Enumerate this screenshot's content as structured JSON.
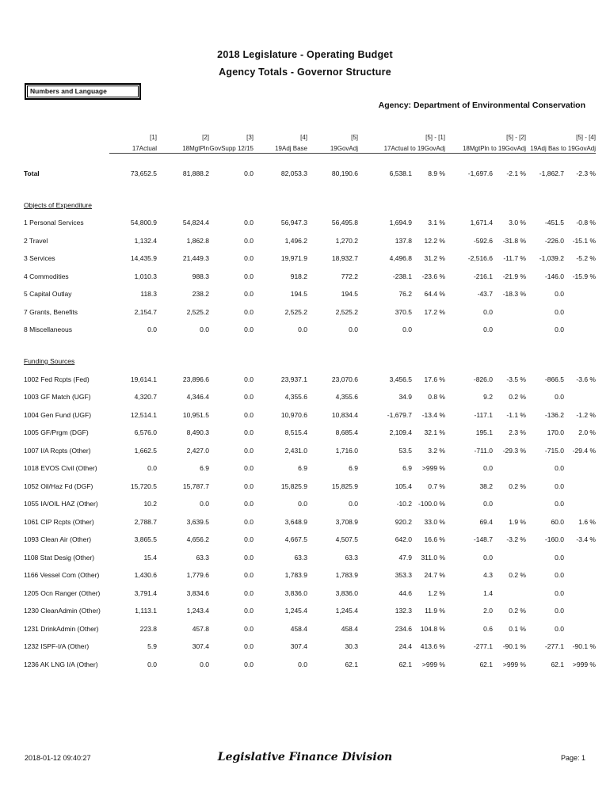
{
  "header": {
    "title_line1": "2018 Legislature - Operating Budget",
    "title_line2": "Agency Totals - Governor Structure",
    "params_box": "Numbers and Language",
    "agency_line": "Agency: Department of Environmental Conservation"
  },
  "table": {
    "columns": [
      {
        "bracket": "[1]",
        "label": "17Actual",
        "type": "single"
      },
      {
        "bracket": "[2]",
        "label": "18MgtPln",
        "type": "single"
      },
      {
        "bracket": "[3]",
        "label": "GovSupp 12/15",
        "type": "single"
      },
      {
        "bracket": "[4]",
        "label": "19Adj Base",
        "type": "single"
      },
      {
        "bracket": "[5]",
        "label": "19GovAdj",
        "type": "single"
      },
      {
        "bracket": "[5] - [1]",
        "label": "17Actual to 19GovAdj",
        "type": "group"
      },
      {
        "bracket": "[5] - [2]",
        "label": "18MgtPln to 19GovAdj",
        "type": "group"
      },
      {
        "bracket": "[5] - [4]",
        "label": "19Adj Bas to 19GovAdj",
        "type": "group"
      }
    ],
    "total_row": [
      "Total",
      "73,652.5",
      "81,888.2",
      "0.0",
      "82,053.3",
      "80,190.6",
      "6,538.1",
      "8.9 %",
      "-1,697.6",
      "-2.1 %",
      "-1,862.7",
      "-2.3 %"
    ],
    "sections": [
      {
        "title": "Objects of Expenditure",
        "rows": [
          [
            "1 Personal Services",
            "54,800.9",
            "54,824.4",
            "0.0",
            "56,947.3",
            "56,495.8",
            "1,694.9",
            "3.1 %",
            "1,671.4",
            "3.0 %",
            "-451.5",
            "-0.8 %"
          ],
          [
            "2 Travel",
            "1,132.4",
            "1,862.8",
            "0.0",
            "1,496.2",
            "1,270.2",
            "137.8",
            "12.2 %",
            "-592.6",
            "-31.8 %",
            "-226.0",
            "-15.1 %"
          ],
          [
            "3 Services",
            "14,435.9",
            "21,449.3",
            "0.0",
            "19,971.9",
            "18,932.7",
            "4,496.8",
            "31.2 %",
            "-2,516.6",
            "-11.7 %",
            "-1,039.2",
            "-5.2 %"
          ],
          [
            "4 Commodities",
            "1,010.3",
            "988.3",
            "0.0",
            "918.2",
            "772.2",
            "-238.1",
            "-23.6 %",
            "-216.1",
            "-21.9 %",
            "-146.0",
            "-15.9 %"
          ],
          [
            "5 Capital Outlay",
            "118.3",
            "238.2",
            "0.0",
            "194.5",
            "194.5",
            "76.2",
            "64.4 %",
            "-43.7",
            "-18.3 %",
            "0.0",
            ""
          ],
          [
            "7 Grants, Benefits",
            "2,154.7",
            "2,525.2",
            "0.0",
            "2,525.2",
            "2,525.2",
            "370.5",
            "17.2 %",
            "0.0",
            "",
            "0.0",
            ""
          ],
          [
            "8 Miscellaneous",
            "0.0",
            "0.0",
            "0.0",
            "0.0",
            "0.0",
            "0.0",
            "",
            "0.0",
            "",
            "0.0",
            ""
          ]
        ]
      },
      {
        "title": "Funding Sources",
        "rows": [
          [
            "1002 Fed Rcpts (Fed)",
            "19,614.1",
            "23,896.6",
            "0.0",
            "23,937.1",
            "23,070.6",
            "3,456.5",
            "17.6 %",
            "-826.0",
            "-3.5 %",
            "-866.5",
            "-3.6 %"
          ],
          [
            "1003 GF Match (UGF)",
            "4,320.7",
            "4,346.4",
            "0.0",
            "4,355.6",
            "4,355.6",
            "34.9",
            "0.8 %",
            "9.2",
            "0.2 %",
            "0.0",
            ""
          ],
          [
            "1004 Gen Fund (UGF)",
            "12,514.1",
            "10,951.5",
            "0.0",
            "10,970.6",
            "10,834.4",
            "-1,679.7",
            "-13.4 %",
            "-117.1",
            "-1.1 %",
            "-136.2",
            "-1.2 %"
          ],
          [
            "1005 GF/Prgm (DGF)",
            "6,576.0",
            "8,490.3",
            "0.0",
            "8,515.4",
            "8,685.4",
            "2,109.4",
            "32.1 %",
            "195.1",
            "2.3 %",
            "170.0",
            "2.0 %"
          ],
          [
            "1007 I/A Rcpts (Other)",
            "1,662.5",
            "2,427.0",
            "0.0",
            "2,431.0",
            "1,716.0",
            "53.5",
            "3.2 %",
            "-711.0",
            "-29.3 %",
            "-715.0",
            "-29.4 %"
          ],
          [
            "1018 EVOS Civil (Other)",
            "0.0",
            "6.9",
            "0.0",
            "6.9",
            "6.9",
            "6.9",
            ">999 %",
            "0.0",
            "",
            "0.0",
            ""
          ],
          [
            "1052 Oil/Haz Fd (DGF)",
            "15,720.5",
            "15,787.7",
            "0.0",
            "15,825.9",
            "15,825.9",
            "105.4",
            "0.7 %",
            "38.2",
            "0.2 %",
            "0.0",
            ""
          ],
          [
            "1055 IA/OIL HAZ (Other)",
            "10.2",
            "0.0",
            "0.0",
            "0.0",
            "0.0",
            "-10.2",
            "-100.0 %",
            "0.0",
            "",
            "0.0",
            ""
          ],
          [
            "1061 CIP Rcpts (Other)",
            "2,788.7",
            "3,639.5",
            "0.0",
            "3,648.9",
            "3,708.9",
            "920.2",
            "33.0 %",
            "69.4",
            "1.9 %",
            "60.0",
            "1.6 %"
          ],
          [
            "1093 Clean Air (Other)",
            "3,865.5",
            "4,656.2",
            "0.0",
            "4,667.5",
            "4,507.5",
            "642.0",
            "16.6 %",
            "-148.7",
            "-3.2 %",
            "-160.0",
            "-3.4 %"
          ],
          [
            "1108 Stat Desig (Other)",
            "15.4",
            "63.3",
            "0.0",
            "63.3",
            "63.3",
            "47.9",
            "311.0 %",
            "0.0",
            "",
            "0.0",
            ""
          ],
          [
            "1166 Vessel Com (Other)",
            "1,430.6",
            "1,779.6",
            "0.0",
            "1,783.9",
            "1,783.9",
            "353.3",
            "24.7 %",
            "4.3",
            "0.2 %",
            "0.0",
            ""
          ],
          [
            "1205 Ocn Ranger (Other)",
            "3,791.4",
            "3,834.6",
            "0.0",
            "3,836.0",
            "3,836.0",
            "44.6",
            "1.2 %",
            "1.4",
            "",
            "0.0",
            ""
          ],
          [
            "1230 CleanAdmin (Other)",
            "1,113.1",
            "1,243.4",
            "0.0",
            "1,245.4",
            "1,245.4",
            "132.3",
            "11.9 %",
            "2.0",
            "0.2 %",
            "0.0",
            ""
          ],
          [
            "1231 DrinkAdmin (Other)",
            "223.8",
            "457.8",
            "0.0",
            "458.4",
            "458.4",
            "234.6",
            "104.8 %",
            "0.6",
            "0.1 %",
            "0.0",
            ""
          ],
          [
            "1232 ISPF-I/A (Other)",
            "5.9",
            "307.4",
            "0.0",
            "307.4",
            "30.3",
            "24.4",
            "413.6 %",
            "-277.1",
            "-90.1 %",
            "-277.1",
            "-90.1 %"
          ],
          [
            "1236 AK LNG I/A (Other)",
            "0.0",
            "0.0",
            "0.0",
            "0.0",
            "62.1",
            "62.1",
            ">999 %",
            "62.1",
            ">999 %",
            "62.1",
            ">999 %"
          ]
        ]
      }
    ]
  },
  "footer": {
    "timestamp": "2018-01-12 09:40:27",
    "division": "Legislative Finance Division",
    "page": "Page: 1"
  }
}
